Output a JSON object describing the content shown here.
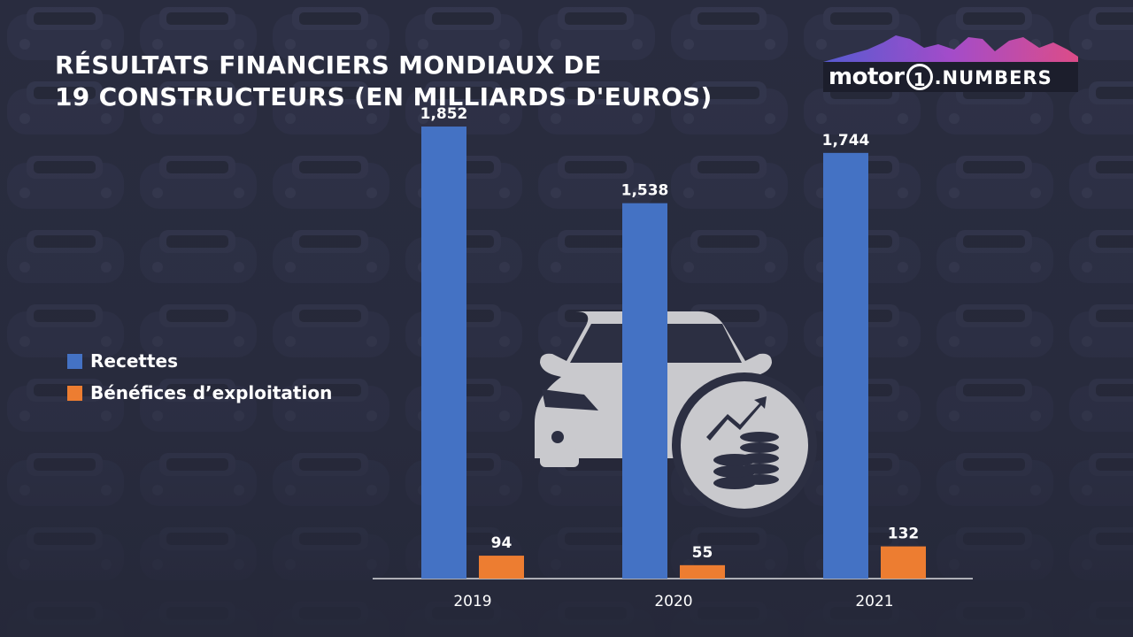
{
  "title": {
    "line1": "RÉSULTATS FINANCIERS MONDIAUX DE",
    "line2": "19 CONSTRUCTEURS (EN MILLIARDS D'EUROS)"
  },
  "logo": {
    "motor": "motor",
    "one": "1",
    "numbers": ".NUMBERS"
  },
  "legend": {
    "placement": "left",
    "items": [
      {
        "label": "Recettes",
        "color": "#4472C4"
      },
      {
        "label": "Bénéfices d’exploitation",
        "color": "#ED7D31"
      }
    ]
  },
  "illustration": {
    "icon": "car-with-coins-icon",
    "color": "#c9c9cd"
  },
  "chart_data": {
    "type": "bar",
    "categories": [
      "2019",
      "2020",
      "2021"
    ],
    "series": [
      {
        "name": "Recettes",
        "color": "#4472C4",
        "values": [
          1852,
          1538,
          1744
        ],
        "labels": [
          "1,852",
          "1,538",
          "1,744"
        ]
      },
      {
        "name": "Bénéfices d’exploitation",
        "color": "#ED7D31",
        "values": [
          94,
          55,
          132
        ],
        "labels": [
          "94",
          "55",
          "132"
        ]
      }
    ],
    "ylim": [
      0,
      1950
    ],
    "grid": false
  }
}
